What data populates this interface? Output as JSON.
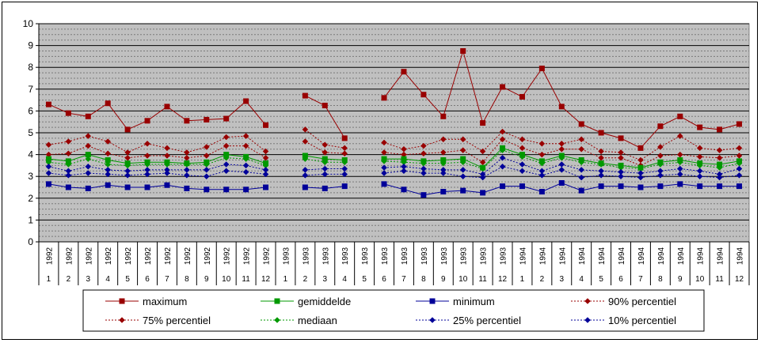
{
  "chart_data": {
    "type": "line",
    "ylim": [
      0,
      10
    ],
    "yticks": [
      "0",
      "1",
      "2",
      "3",
      "4",
      "5",
      "6",
      "7",
      "8",
      "9",
      "10"
    ],
    "grid": true,
    "legend_position": "bottom",
    "categories": [
      {
        "year": "1992",
        "month": "1"
      },
      {
        "year": "1992",
        "month": "2"
      },
      {
        "year": "1992",
        "month": "3"
      },
      {
        "year": "1992",
        "month": "4"
      },
      {
        "year": "1992",
        "month": "5"
      },
      {
        "year": "1992",
        "month": "6"
      },
      {
        "year": "1992",
        "month": "7"
      },
      {
        "year": "1992",
        "month": "8"
      },
      {
        "year": "1992",
        "month": "9"
      },
      {
        "year": "1992",
        "month": "10"
      },
      {
        "year": "1992",
        "month": "11"
      },
      {
        "year": "1992",
        "month": "12"
      },
      {
        "year": "1993",
        "month": "1"
      },
      {
        "year": "1993",
        "month": "2"
      },
      {
        "year": "1993",
        "month": "3"
      },
      {
        "year": "1993",
        "month": "4"
      },
      {
        "year": "1993",
        "month": "5"
      },
      {
        "year": "1993",
        "month": "6"
      },
      {
        "year": "1993",
        "month": "7"
      },
      {
        "year": "1993",
        "month": "8"
      },
      {
        "year": "1993",
        "month": "9"
      },
      {
        "year": "1993",
        "month": "10"
      },
      {
        "year": "1993",
        "month": "11"
      },
      {
        "year": "1993",
        "month": "12"
      },
      {
        "year": "1994",
        "month": "1"
      },
      {
        "year": "1994",
        "month": "2"
      },
      {
        "year": "1994",
        "month": "3"
      },
      {
        "year": "1994",
        "month": "4"
      },
      {
        "year": "1994",
        "month": "5"
      },
      {
        "year": "1994",
        "month": "6"
      },
      {
        "year": "1994",
        "month": "7"
      },
      {
        "year": "1994",
        "month": "8"
      },
      {
        "year": "1994",
        "month": "9"
      },
      {
        "year": "1994",
        "month": "10"
      },
      {
        "year": "1994",
        "month": "11"
      },
      {
        "year": "1994",
        "month": "12"
      }
    ],
    "series": [
      {
        "name": "maximum",
        "color": "#990000",
        "marker": "square",
        "dash": false,
        "values": [
          6.3,
          5.9,
          5.75,
          6.35,
          5.15,
          5.55,
          6.2,
          5.55,
          5.6,
          5.65,
          6.45,
          5.35,
          null,
          6.7,
          6.25,
          4.75,
          null,
          6.6,
          7.8,
          6.75,
          5.75,
          8.75,
          5.45,
          7.1,
          6.65,
          7.95,
          6.2,
          5.4,
          5.0,
          4.75,
          4.3,
          5.3,
          5.75,
          5.25,
          5.15,
          5.4
        ]
      },
      {
        "name": "gemiddelde",
        "color": "#009900",
        "marker": "square",
        "dash": false,
        "values": [
          3.8,
          3.7,
          4.0,
          3.75,
          3.6,
          3.65,
          3.65,
          3.6,
          3.65,
          4.0,
          3.9,
          3.6,
          null,
          3.95,
          3.8,
          3.75,
          null,
          3.8,
          3.8,
          3.7,
          3.75,
          3.8,
          3.4,
          4.3,
          4.0,
          3.7,
          3.95,
          3.75,
          3.6,
          3.5,
          3.4,
          3.65,
          3.75,
          3.6,
          3.55,
          3.7
        ]
      },
      {
        "name": "minimum",
        "color": "#000099",
        "marker": "square",
        "dash": false,
        "values": [
          2.65,
          2.5,
          2.45,
          2.6,
          2.5,
          2.5,
          2.6,
          2.45,
          2.4,
          2.4,
          2.4,
          2.5,
          null,
          2.5,
          2.45,
          2.55,
          null,
          2.65,
          2.4,
          2.15,
          2.3,
          2.35,
          2.25,
          2.55,
          2.55,
          2.3,
          2.7,
          2.35,
          2.55,
          2.55,
          2.5,
          2.55,
          2.65,
          2.55,
          2.55,
          2.55
        ]
      },
      {
        "name": "90% percentiel",
        "color": "#990000",
        "marker": "diamond",
        "dash": true,
        "values": [
          4.45,
          4.6,
          4.85,
          4.6,
          4.1,
          4.5,
          4.3,
          4.1,
          4.35,
          4.8,
          4.85,
          4.15,
          null,
          5.15,
          4.45,
          4.3,
          null,
          4.55,
          4.25,
          4.4,
          4.7,
          4.7,
          4.15,
          5.05,
          4.7,
          4.5,
          4.5,
          4.7,
          4.15,
          4.1,
          3.75,
          4.35,
          4.85,
          4.3,
          4.2,
          4.3
        ]
      },
      {
        "name": "75% percentiel",
        "color": "#990000",
        "marker": "diamond",
        "dash": true,
        "values": [
          4.0,
          4.05,
          4.4,
          4.05,
          3.85,
          3.95,
          3.95,
          3.85,
          3.95,
          4.4,
          4.4,
          3.85,
          null,
          4.6,
          4.1,
          4.05,
          null,
          4.1,
          4.0,
          4.05,
          4.1,
          4.2,
          3.65,
          4.7,
          4.3,
          4.0,
          4.25,
          4.25,
          3.85,
          3.85,
          3.5,
          3.95,
          4.0,
          3.9,
          3.85,
          3.95
        ]
      },
      {
        "name": "mediaan",
        "color": "#009900",
        "marker": "diamond",
        "dash": true,
        "values": [
          3.65,
          3.55,
          3.8,
          3.55,
          3.5,
          3.55,
          3.55,
          3.55,
          3.55,
          3.85,
          3.8,
          3.5,
          null,
          3.8,
          3.65,
          3.65,
          null,
          3.7,
          3.65,
          3.6,
          3.6,
          3.65,
          3.35,
          4.2,
          3.9,
          3.6,
          3.85,
          3.65,
          3.55,
          3.4,
          3.35,
          3.55,
          3.65,
          3.5,
          3.4,
          3.6
        ]
      },
      {
        "name": "25% percentiel",
        "color": "#000099",
        "marker": "diamond",
        "dash": true,
        "values": [
          3.45,
          3.25,
          3.45,
          3.3,
          3.25,
          3.3,
          3.3,
          3.3,
          3.3,
          3.55,
          3.5,
          3.3,
          null,
          3.3,
          3.35,
          3.35,
          null,
          3.4,
          3.45,
          3.35,
          3.3,
          3.3,
          3.1,
          3.85,
          3.55,
          3.25,
          3.55,
          3.3,
          3.25,
          3.2,
          3.15,
          3.25,
          3.35,
          3.25,
          3.1,
          3.35
        ]
      },
      {
        "name": "10% percentiel",
        "color": "#000099",
        "marker": "diamond",
        "dash": true,
        "values": [
          3.15,
          3.05,
          3.15,
          3.1,
          3.05,
          3.1,
          3.15,
          3.05,
          3.0,
          3.25,
          3.2,
          3.1,
          null,
          3.05,
          3.1,
          3.1,
          null,
          3.15,
          3.25,
          3.15,
          3.15,
          3.0,
          2.95,
          3.45,
          3.25,
          3.05,
          3.3,
          2.95,
          3.05,
          3.0,
          2.95,
          3.05,
          3.1,
          3.0,
          2.95,
          3.05
        ]
      }
    ]
  }
}
